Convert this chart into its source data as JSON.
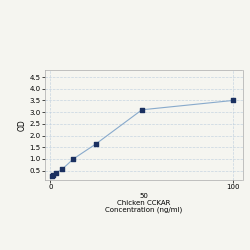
{
  "x": [
    0.78,
    1.56,
    3.13,
    6.25,
    12.5,
    25,
    50,
    100
  ],
  "y": [
    0.285,
    0.33,
    0.41,
    0.55,
    1.0,
    1.65,
    3.1,
    3.5
  ],
  "line_color": "#88aacc",
  "marker_color": "#1a3060",
  "marker_style": "s",
  "marker_size": 3,
  "line_width": 0.8,
  "xlabel_line1": "50",
  "xlabel_line2": "Chicken CCKAR",
  "xlabel_line3": "Concentration (ng/ml)",
  "ylabel": "OD",
  "xlim": [
    -3,
    105
  ],
  "ylim": [
    0.1,
    4.8
  ],
  "yticks": [
    0.5,
    1.0,
    1.5,
    2.0,
    2.5,
    3.0,
    3.5,
    4.0,
    4.5
  ],
  "xtick_vals": [
    0,
    100
  ],
  "xtick_labels": [
    "0",
    "100"
  ],
  "grid_color": "#bbccdd",
  "grid_linestyle": "--",
  "grid_alpha": 0.8,
  "bg_color": "#f5f5f0",
  "plot_bg": "#f5f5f0",
  "xlabel_fontsize": 5.0,
  "ylabel_fontsize": 5.5,
  "tick_fontsize": 5.0
}
